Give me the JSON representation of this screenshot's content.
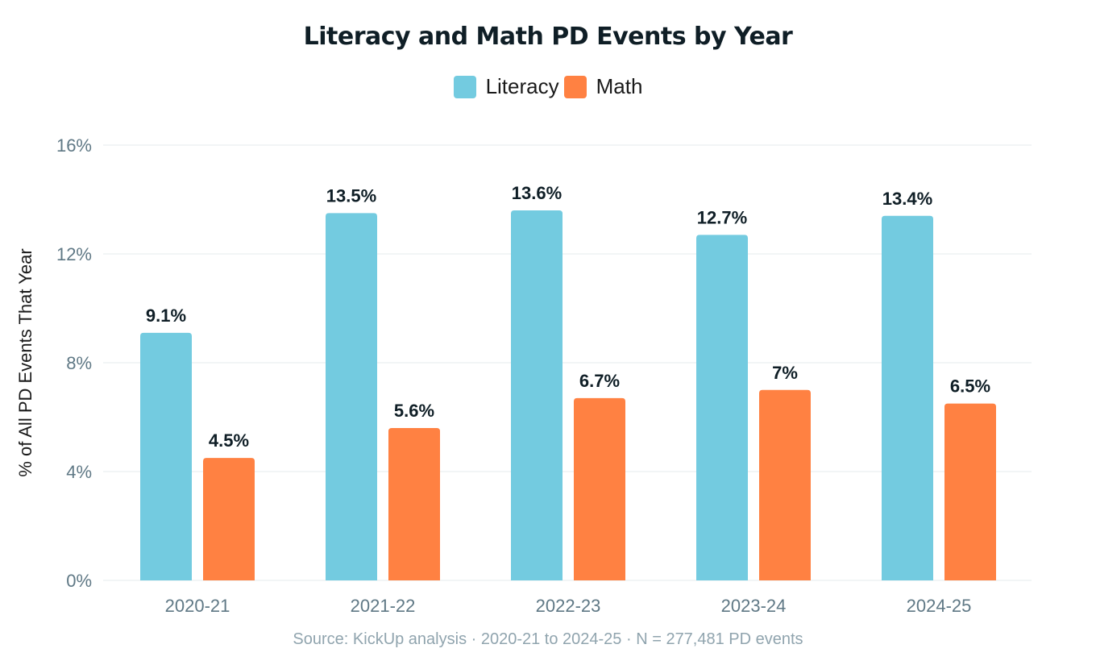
{
  "chart_data": {
    "type": "bar",
    "title": "Literacy and Math PD Events by Year",
    "xlabel": "",
    "ylabel": "% of All PD Events That Year",
    "categories": [
      "2020-21",
      "2021-22",
      "2022-23",
      "2023-24",
      "2024-25"
    ],
    "series": [
      {
        "name": "Literacy",
        "color": "#73cbe0",
        "values": [
          9.1,
          13.5,
          13.6,
          12.7,
          13.4
        ],
        "labels": [
          "9.1%",
          "13.5%",
          "13.6%",
          "12.7%",
          "13.4%"
        ]
      },
      {
        "name": "Math",
        "color": "#ff8142",
        "values": [
          4.5,
          5.6,
          6.7,
          7.0,
          6.5
        ],
        "labels": [
          "4.5%",
          "5.6%",
          "6.7%",
          "7%",
          "6.5%"
        ]
      }
    ],
    "ylim": [
      0,
      16
    ],
    "yticks": [
      0,
      4,
      8,
      12,
      16
    ],
    "ytick_labels": [
      "0%",
      "4%",
      "8%",
      "12%",
      "16%"
    ],
    "grid": true,
    "legend": "top-center",
    "source": "Source: KickUp analysis · 2020-21 to 2024-25 · N = 277,481 PD events"
  }
}
